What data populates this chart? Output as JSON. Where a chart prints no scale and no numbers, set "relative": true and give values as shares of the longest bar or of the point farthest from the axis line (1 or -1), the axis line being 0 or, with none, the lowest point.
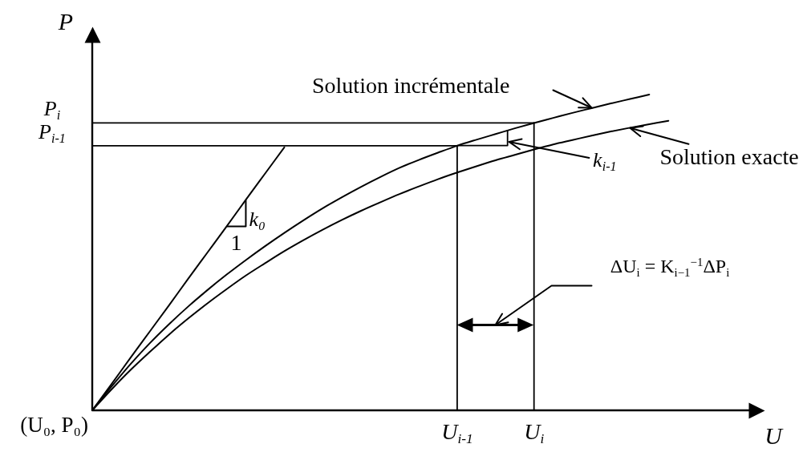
{
  "chart_data": {
    "type": "line",
    "xlabel": "U",
    "ylabel": "P",
    "relative": true,
    "categories": [
      null,
      null,
      null,
      null,
      null,
      null,
      null,
      null,
      null,
      null,
      null,
      null,
      null,
      null,
      null,
      null,
      null,
      null,
      null,
      "U$_{i-1}$",
      null,
      null,
      null,
      "U$_{i}$",
      null,
      null,
      null,
      null,
      null,
      null,
      null,
      null,
      null,
      null,
      null,
      null
    ],
    "series": [
      {
        "name": "Solution incrémentale",
        "color": "#000000",
        "values": [
          0,
          0.075,
          0.147,
          0.213,
          0.273,
          0.329,
          0.381,
          0.43,
          0.476,
          0.52,
          0.562,
          0.602,
          0.64,
          0.675,
          0.708,
          0.739,
          0.768,
          0.793,
          0.816,
          0.838,
          0.857,
          0.875,
          0.893,
          0.91,
          0.926,
          0.942,
          0.957,
          0.972,
          0.986,
          1,
          null,
          null,
          null,
          null,
          null,
          null
        ]
      },
      {
        "name": "Solution exacte",
        "color": "#000000",
        "values": [
          0,
          0.066,
          0.128,
          0.185,
          0.24,
          0.291,
          0.339,
          0.384,
          0.427,
          0.466,
          0.504,
          0.539,
          0.572,
          0.603,
          0.632,
          0.659,
          0.685,
          0.709,
          0.732,
          0.753,
          0.773,
          0.792,
          0.809,
          0.826,
          0.842,
          0.856,
          0.87,
          0.883,
          0.895,
          0.906,
          0.917,
          null,
          null,
          null,
          null,
          null
        ]
      },
      {
        "color": "#000000",
        "values": [
          0,
          0.083,
          0.167,
          0.25,
          0.333,
          0.417,
          0.5,
          0.583,
          0.667,
          0.75,
          0.833,
          null,
          null,
          null,
          null,
          null,
          null,
          null,
          null,
          null,
          null,
          null,
          null,
          null,
          null,
          null,
          null,
          null,
          null,
          null,
          null,
          null,
          null,
          null,
          null,
          null
        ]
      }
    ],
    "ref_lines": [
      {
        "axis": "y",
        "value": 0.91,
        "label": "P$_{i}$"
      },
      {
        "axis": "y",
        "value": 0.838,
        "label": "P$_{i-1}$"
      },
      {
        "axis": "x",
        "value": "U$_{i-1}$"
      },
      {
        "axis": "x",
        "value": "U$_{i}$"
      }
    ],
    "annotations": [
      "(U₀, P₀)",
      "k₀",
      "1",
      "k$_{i-1}$",
      "ΔU$_{i}$ = K$_{i−1}$$^{−1}$ΔP$_{i}$"
    ]
  }
}
